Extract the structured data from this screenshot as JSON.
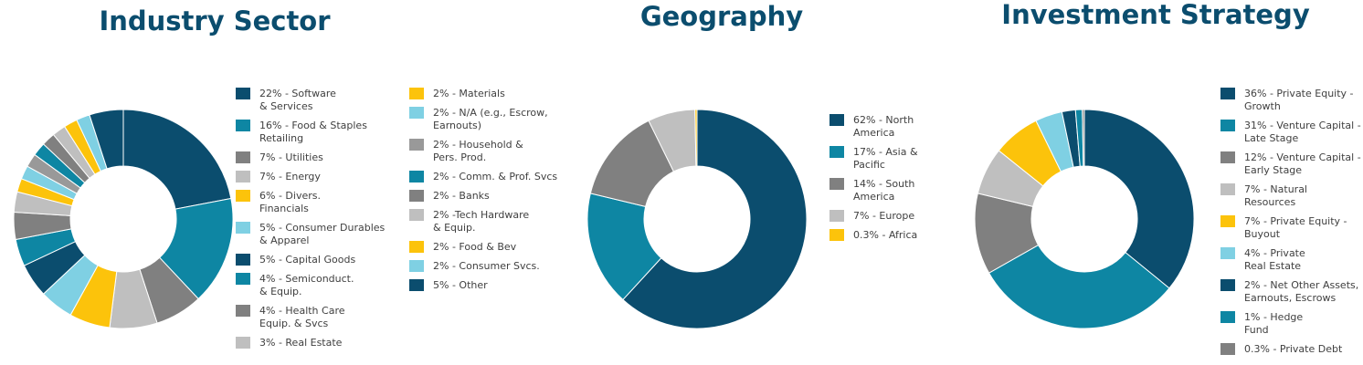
{
  "chart_data": [
    {
      "type": "pie",
      "title": "Industry Sector",
      "legend_columns": 2,
      "categories": [
        "22% - Software\n& Services",
        "16% - Food & Staples\nRetailing",
        "7% - Utilities",
        "7% - Energy",
        "6% - Divers.\nFinancials",
        "5% - Consumer Durables\n& Apparel",
        "5% - Capital Goods",
        "4% - Semiconduct.\n& Equip.",
        "4% - Health Care\nEquip. & Svcs",
        "3% - Real Estate",
        "2% - Materials",
        "2% - N/A (e.g., Escrow,\nEarnouts)",
        "2% - Household &\nPers. Prod.",
        "2% - Comm. & Prof. Svcs",
        "2% - Banks",
        "2% -Tech Hardware\n& Equip.",
        "2% - Food & Bev",
        "2% - Consumer Svcs.",
        "5% - Other"
      ],
      "values": [
        22,
        16,
        7,
        7,
        6,
        5,
        5,
        4,
        4,
        3,
        2,
        2,
        2,
        2,
        2,
        2,
        2,
        2,
        5
      ],
      "colors": [
        "#0b4d6e",
        "#0e86a3",
        "#808080",
        "#bfbfbf",
        "#fcc30b",
        "#7fd0e3",
        "#0b4d6e",
        "#0e86a3",
        "#808080",
        "#bfbfbf",
        "#fcc30b",
        "#7fd0e3",
        "#999999",
        "#0e86a3",
        "#808080",
        "#bfbfbf",
        "#fcc30b",
        "#7fd0e3",
        "#0b4d6e"
      ]
    },
    {
      "type": "pie",
      "title": "Geography",
      "legend_columns": 1,
      "categories": [
        "62% - North\nAmerica",
        "17% - Asia &\nPacific",
        "14% - South\nAmerica",
        "7% - Europe",
        "0.3% - Africa"
      ],
      "values": [
        62,
        17,
        14,
        7,
        0.3
      ],
      "colors": [
        "#0b4d6e",
        "#0e86a3",
        "#808080",
        "#bfbfbf",
        "#fcc30b"
      ]
    },
    {
      "type": "pie",
      "title": "Investment Strategy",
      "legend_columns": 1,
      "categories": [
        "36% - Private Equity -\nGrowth",
        "31% - Venture Capital -\nLate Stage",
        "12% - Venture Capital -\nEarly Stage",
        "7% - Natural\nResources",
        "7% - Private Equity -\nBuyout",
        "4% - Private\nReal Estate",
        "2% - Net Other Assets,\nEarnouts, Escrows",
        "1% - Hedge\nFund",
        "0.3% - Private Debt"
      ],
      "values": [
        36,
        31,
        12,
        7,
        7,
        4,
        2,
        1,
        0.3
      ],
      "colors": [
        "#0b4d6e",
        "#0e86a3",
        "#808080",
        "#bfbfbf",
        "#fcc30b",
        "#7fd0e3",
        "#0b4d6e",
        "#0e86a3",
        "#808080"
      ]
    }
  ]
}
